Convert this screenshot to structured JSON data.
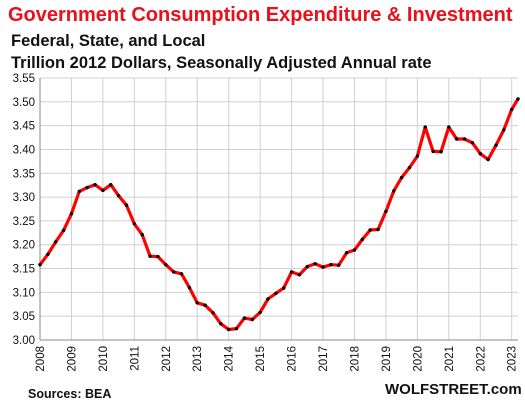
{
  "chart_data": {
    "type": "line",
    "title": "Government Consumption  Expenditure & Investment",
    "subtitle_lines": [
      "Federal, State, and Local",
      "Trillion 2012 Dollars, Seasonally Adjusted Annual rate"
    ],
    "xlabel": "",
    "ylabel": "",
    "ylim": [
      3.0,
      3.55
    ],
    "yticks": [
      "3.00",
      "3.05",
      "3.10",
      "3.15",
      "3.20",
      "3.25",
      "3.30",
      "3.35",
      "3.40",
      "3.45",
      "3.50",
      "3.55"
    ],
    "xlim": [
      2008,
      2023.2
    ],
    "xticks": [
      "2008",
      "2009",
      "2010",
      "2011",
      "2012",
      "2013",
      "2014",
      "2015",
      "2016",
      "2017",
      "2018",
      "2019",
      "2020",
      "2021",
      "2022",
      "2023"
    ],
    "grid": true,
    "legend": "none",
    "series": [
      {
        "color": "#ff0000",
        "marker_color": "#000000",
        "points": [
          [
            2008.0,
            3.158
          ],
          [
            2008.25,
            3.18
          ],
          [
            2008.5,
            3.206
          ],
          [
            2008.75,
            3.23
          ],
          [
            2009.0,
            3.265
          ],
          [
            2009.25,
            3.312
          ],
          [
            2009.5,
            3.32
          ],
          [
            2009.75,
            3.326
          ],
          [
            2010.0,
            3.314
          ],
          [
            2010.25,
            3.326
          ],
          [
            2010.5,
            3.303
          ],
          [
            2010.75,
            3.283
          ],
          [
            2011.0,
            3.244
          ],
          [
            2011.25,
            3.221
          ],
          [
            2011.5,
            3.176
          ],
          [
            2011.75,
            3.175
          ],
          [
            2012.0,
            3.158
          ],
          [
            2012.25,
            3.143
          ],
          [
            2012.5,
            3.139
          ],
          [
            2012.75,
            3.11
          ],
          [
            2013.0,
            3.078
          ],
          [
            2013.25,
            3.073
          ],
          [
            2013.5,
            3.057
          ],
          [
            2013.75,
            3.034
          ],
          [
            2014.0,
            3.022
          ],
          [
            2014.25,
            3.024
          ],
          [
            2014.5,
            3.046
          ],
          [
            2014.75,
            3.043
          ],
          [
            2015.0,
            3.058
          ],
          [
            2015.25,
            3.086
          ],
          [
            2015.5,
            3.098
          ],
          [
            2015.75,
            3.109
          ],
          [
            2016.0,
            3.143
          ],
          [
            2016.25,
            3.137
          ],
          [
            2016.5,
            3.154
          ],
          [
            2016.75,
            3.16
          ],
          [
            2017.0,
            3.153
          ],
          [
            2017.25,
            3.158
          ],
          [
            2017.5,
            3.157
          ],
          [
            2017.75,
            3.183
          ],
          [
            2018.0,
            3.189
          ],
          [
            2018.25,
            3.211
          ],
          [
            2018.5,
            3.231
          ],
          [
            2018.75,
            3.232
          ],
          [
            2019.0,
            3.27
          ],
          [
            2019.25,
            3.313
          ],
          [
            2019.5,
            3.341
          ],
          [
            2019.75,
            3.362
          ],
          [
            2020.0,
            3.386
          ],
          [
            2020.25,
            3.447
          ],
          [
            2020.5,
            3.396
          ],
          [
            2020.75,
            3.395
          ],
          [
            2021.0,
            3.447
          ],
          [
            2021.25,
            3.422
          ],
          [
            2021.5,
            3.422
          ],
          [
            2021.75,
            3.414
          ],
          [
            2022.0,
            3.391
          ],
          [
            2022.25,
            3.379
          ],
          [
            2022.5,
            3.409
          ],
          [
            2022.75,
            3.441
          ],
          [
            2023.0,
            3.484
          ],
          [
            2023.2,
            3.506
          ]
        ]
      }
    ]
  },
  "footer": {
    "source": "Sources: BEA",
    "watermark": "WOLFSTREET.com"
  }
}
